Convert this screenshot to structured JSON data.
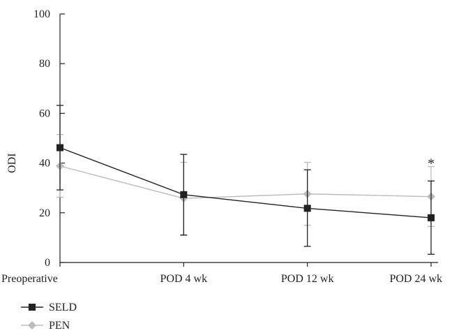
{
  "chart_data": {
    "type": "line",
    "categories": [
      "Preoperative",
      "POD 4 wk",
      "POD 12 wk",
      "POD 24 wk"
    ],
    "ylabel": "ODI",
    "ylim": [
      0,
      100
    ],
    "yticks": [
      0,
      20,
      40,
      60,
      80,
      100
    ],
    "grid": false,
    "legend_position": "bottom-left",
    "series": [
      {
        "name": "SELD",
        "color": "#222222",
        "marker": "square",
        "values": [
          46.2,
          27.3,
          21.8,
          18.0
        ],
        "error_low": [
          29.2,
          11.0,
          6.5,
          3.3
        ],
        "error_high": [
          63.2,
          43.5,
          37.3,
          32.8
        ]
      },
      {
        "name": "PEN",
        "color": "#bbbbbb",
        "marker": "diamond",
        "values": [
          38.8,
          25.8,
          27.6,
          26.5
        ],
        "error_low": [
          26.3,
          11.2,
          15.0,
          14.5
        ],
        "error_high": [
          51.5,
          40.3,
          40.3,
          38.6
        ]
      }
    ],
    "annotations": [
      {
        "text": "*",
        "category": "POD 24 wk",
        "y": 42
      }
    ]
  }
}
